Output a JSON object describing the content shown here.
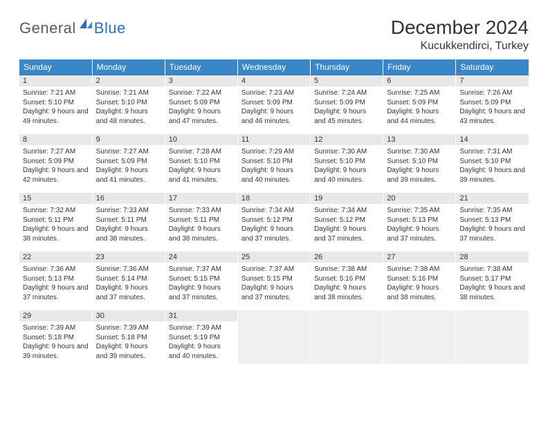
{
  "logo": {
    "text1": "General",
    "text2": "Blue"
  },
  "title": "December 2024",
  "location": "Kucukkendirci, Turkey",
  "colors": {
    "header_bg": "#3a87c8",
    "header_text": "#ffffff",
    "accent": "#2f6fb0",
    "daynum_bg": "#e8e8e8",
    "empty_bg": "#f0f0f0",
    "text": "#333333",
    "page_bg": "#ffffff"
  },
  "weekdays": [
    "Sunday",
    "Monday",
    "Tuesday",
    "Wednesday",
    "Thursday",
    "Friday",
    "Saturday"
  ],
  "days": [
    {
      "n": 1,
      "sunrise": "7:21 AM",
      "sunset": "5:10 PM",
      "daylight": "9 hours and 49 minutes."
    },
    {
      "n": 2,
      "sunrise": "7:21 AM",
      "sunset": "5:10 PM",
      "daylight": "9 hours and 48 minutes."
    },
    {
      "n": 3,
      "sunrise": "7:22 AM",
      "sunset": "5:09 PM",
      "daylight": "9 hours and 47 minutes."
    },
    {
      "n": 4,
      "sunrise": "7:23 AM",
      "sunset": "5:09 PM",
      "daylight": "9 hours and 46 minutes."
    },
    {
      "n": 5,
      "sunrise": "7:24 AM",
      "sunset": "5:09 PM",
      "daylight": "9 hours and 45 minutes."
    },
    {
      "n": 6,
      "sunrise": "7:25 AM",
      "sunset": "5:09 PM",
      "daylight": "9 hours and 44 minutes."
    },
    {
      "n": 7,
      "sunrise": "7:26 AM",
      "sunset": "5:09 PM",
      "daylight": "9 hours and 43 minutes."
    },
    {
      "n": 8,
      "sunrise": "7:27 AM",
      "sunset": "5:09 PM",
      "daylight": "9 hours and 42 minutes."
    },
    {
      "n": 9,
      "sunrise": "7:27 AM",
      "sunset": "5:09 PM",
      "daylight": "9 hours and 41 minutes."
    },
    {
      "n": 10,
      "sunrise": "7:28 AM",
      "sunset": "5:10 PM",
      "daylight": "9 hours and 41 minutes."
    },
    {
      "n": 11,
      "sunrise": "7:29 AM",
      "sunset": "5:10 PM",
      "daylight": "9 hours and 40 minutes."
    },
    {
      "n": 12,
      "sunrise": "7:30 AM",
      "sunset": "5:10 PM",
      "daylight": "9 hours and 40 minutes."
    },
    {
      "n": 13,
      "sunrise": "7:30 AM",
      "sunset": "5:10 PM",
      "daylight": "9 hours and 39 minutes."
    },
    {
      "n": 14,
      "sunrise": "7:31 AM",
      "sunset": "5:10 PM",
      "daylight": "9 hours and 39 minutes."
    },
    {
      "n": 15,
      "sunrise": "7:32 AM",
      "sunset": "5:11 PM",
      "daylight": "9 hours and 38 minutes."
    },
    {
      "n": 16,
      "sunrise": "7:33 AM",
      "sunset": "5:11 PM",
      "daylight": "9 hours and 38 minutes."
    },
    {
      "n": 17,
      "sunrise": "7:33 AM",
      "sunset": "5:11 PM",
      "daylight": "9 hours and 38 minutes."
    },
    {
      "n": 18,
      "sunrise": "7:34 AM",
      "sunset": "5:12 PM",
      "daylight": "9 hours and 37 minutes."
    },
    {
      "n": 19,
      "sunrise": "7:34 AM",
      "sunset": "5:12 PM",
      "daylight": "9 hours and 37 minutes."
    },
    {
      "n": 20,
      "sunrise": "7:35 AM",
      "sunset": "5:13 PM",
      "daylight": "9 hours and 37 minutes."
    },
    {
      "n": 21,
      "sunrise": "7:35 AM",
      "sunset": "5:13 PM",
      "daylight": "9 hours and 37 minutes."
    },
    {
      "n": 22,
      "sunrise": "7:36 AM",
      "sunset": "5:13 PM",
      "daylight": "9 hours and 37 minutes."
    },
    {
      "n": 23,
      "sunrise": "7:36 AM",
      "sunset": "5:14 PM",
      "daylight": "9 hours and 37 minutes."
    },
    {
      "n": 24,
      "sunrise": "7:37 AM",
      "sunset": "5:15 PM",
      "daylight": "9 hours and 37 minutes."
    },
    {
      "n": 25,
      "sunrise": "7:37 AM",
      "sunset": "5:15 PM",
      "daylight": "9 hours and 37 minutes."
    },
    {
      "n": 26,
      "sunrise": "7:38 AM",
      "sunset": "5:16 PM",
      "daylight": "9 hours and 38 minutes."
    },
    {
      "n": 27,
      "sunrise": "7:38 AM",
      "sunset": "5:16 PM",
      "daylight": "9 hours and 38 minutes."
    },
    {
      "n": 28,
      "sunrise": "7:38 AM",
      "sunset": "5:17 PM",
      "daylight": "9 hours and 38 minutes."
    },
    {
      "n": 29,
      "sunrise": "7:39 AM",
      "sunset": "5:18 PM",
      "daylight": "9 hours and 39 minutes."
    },
    {
      "n": 30,
      "sunrise": "7:39 AM",
      "sunset": "5:18 PM",
      "daylight": "9 hours and 39 minutes."
    },
    {
      "n": 31,
      "sunrise": "7:39 AM",
      "sunset": "5:19 PM",
      "daylight": "9 hours and 40 minutes."
    }
  ],
  "labels": {
    "sunrise": "Sunrise:",
    "sunset": "Sunset:",
    "daylight": "Daylight:"
  },
  "first_weekday_offset": 0,
  "trailing_empty": 4
}
